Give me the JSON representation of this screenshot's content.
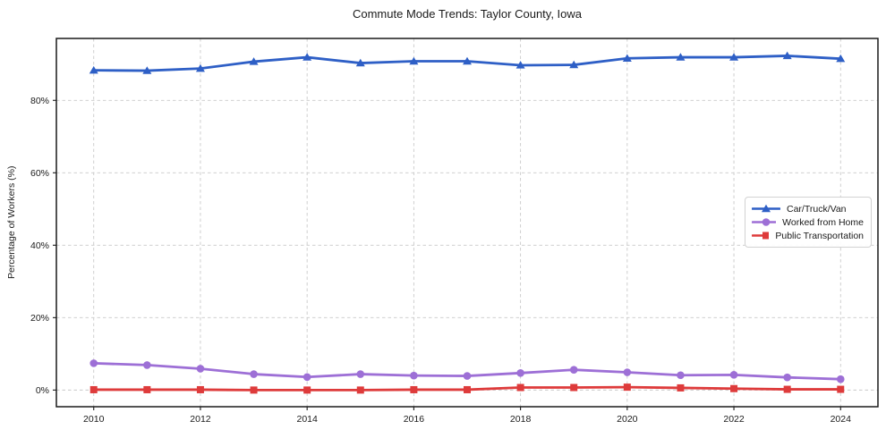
{
  "chart_data": {
    "type": "line",
    "title": "Commute Mode Trends: Taylor County, Iowa",
    "ylabel": "Percentage of Workers (%)",
    "xlabel": "",
    "x": [
      2010,
      2011,
      2012,
      2013,
      2014,
      2015,
      2016,
      2017,
      2018,
      2019,
      2020,
      2021,
      2022,
      2023,
      2024
    ],
    "x_ticks": [
      2010,
      2012,
      2014,
      2016,
      2018,
      2020,
      2022,
      2024
    ],
    "x_tick_labels": [
      "2010",
      "2012",
      "2014",
      "2016",
      "2018",
      "2020",
      "2022",
      "2024"
    ],
    "y_ticks": [
      0,
      20,
      40,
      60,
      80
    ],
    "y_tick_labels": [
      "0%",
      "20%",
      "40%",
      "60%",
      "80%"
    ],
    "xlim": [
      2009.3,
      2024.7
    ],
    "ylim": [
      -4.6,
      97.1
    ],
    "grid": true,
    "grid_style": "dashed",
    "legend_position": "center-right",
    "series": [
      {
        "name": "Car/Truck/Van",
        "color": "#2e5fc6",
        "marker": "triangle",
        "values": [
          88.3,
          88.2,
          88.8,
          90.7,
          91.9,
          90.3,
          90.8,
          90.8,
          89.7,
          89.8,
          91.6,
          91.9,
          91.9,
          92.3,
          91.5
        ]
      },
      {
        "name": "Worked from Home",
        "color": "#9d6fd6",
        "marker": "circle",
        "values": [
          7.4,
          6.9,
          5.9,
          4.4,
          3.6,
          4.4,
          4.0,
          3.9,
          4.7,
          5.6,
          4.9,
          4.1,
          4.2,
          3.5,
          3.0
        ]
      },
      {
        "name": "Public Transportation",
        "color": "#de3b3b",
        "marker": "square",
        "values": [
          0.1,
          0.1,
          0.1,
          0.0,
          0.0,
          0.0,
          0.1,
          0.1,
          0.7,
          0.7,
          0.8,
          0.6,
          0.4,
          0.2,
          0.2
        ]
      }
    ],
    "colors": {
      "grid": "#c9c9c9",
      "spine": "#1a1a1a",
      "text": "#1a1a1a",
      "background": "#ffffff"
    }
  }
}
